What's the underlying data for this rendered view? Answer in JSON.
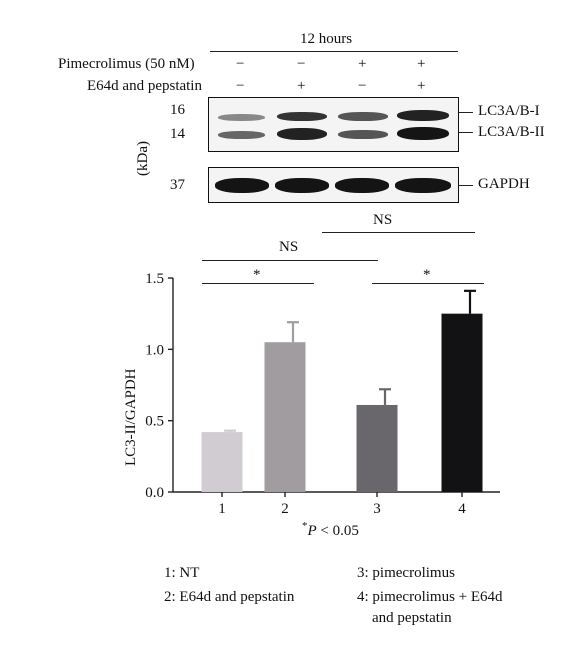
{
  "header": {
    "time_label": "12 hours",
    "row1_label": "Pimecrolimus (50 nM)",
    "row2_label": "E64d and pepstatin",
    "row1_marks": [
      "−",
      "−",
      "+",
      "+"
    ],
    "row2_marks": [
      "−",
      "+",
      "−",
      "+"
    ]
  },
  "blot": {
    "kda_label": "(kDa)",
    "mw_16": "16",
    "mw_14": "14",
    "mw_37": "37",
    "band_upper": "LC3A/B-I",
    "band_lower": "LC3A/B-II",
    "band_loading": "GAPDH"
  },
  "significance": {
    "ns_top": "NS",
    "ns_mid": "NS",
    "star_left": "*",
    "star_right": "*",
    "footnote_star": "*",
    "footnote_p": "P",
    "footnote_rest": "< 0.05"
  },
  "colors": {
    "bar1": "#d1ccd1",
    "bar2": "#a09ca0",
    "bar3": "#6a676c",
    "bar4": "#121113"
  },
  "chart_data": {
    "type": "bar",
    "categories": [
      "1",
      "2",
      "3",
      "4"
    ],
    "values": [
      0.42,
      1.05,
      0.61,
      1.25
    ],
    "errors": [
      0.01,
      0.14,
      0.11,
      0.16
    ],
    "ylabel": "LC3-II/GAPDH",
    "ylim": [
      0.0,
      1.5
    ],
    "yticks": [
      "0.0",
      "0.5",
      "1.0",
      "1.5"
    ]
  },
  "legend": {
    "item1": "1: NT",
    "item2": "2: E64d and pepstatin",
    "item3": "3: pimecrolimus",
    "item4_line1": "4: pimecrolimus + E64d",
    "item4_line2": "and pepstatin"
  }
}
